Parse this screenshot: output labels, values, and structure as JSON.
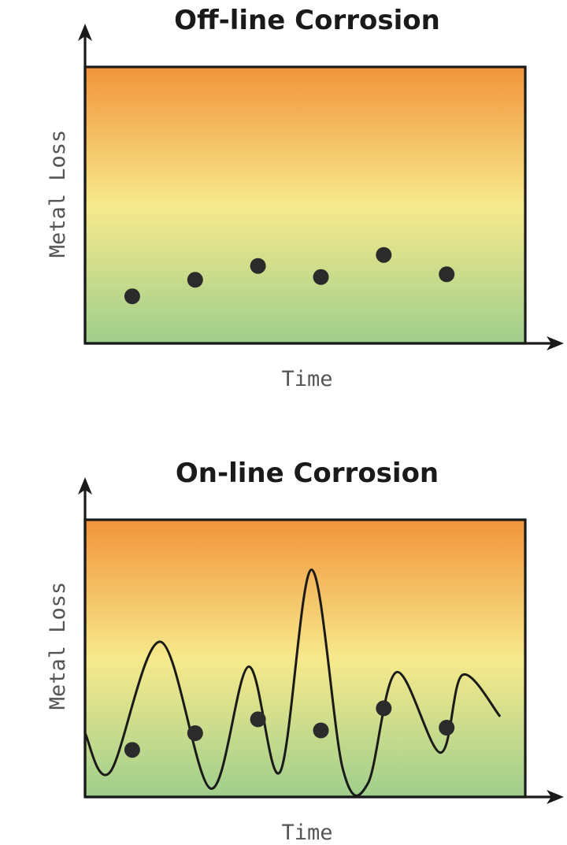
{
  "colors": {
    "gradient_top": "#f2943a",
    "gradient_mid": "#f7e98c",
    "gradient_bottom": "#9fcf8c",
    "ink": "#1a1a1a",
    "dot": "#2b2b2b"
  },
  "chart_data": [
    {
      "type": "scatter",
      "title": "Off-line Corrosion",
      "xlabel": "Time",
      "ylabel": "Metal Loss",
      "xlim": [
        0,
        7
      ],
      "ylim": [
        0,
        10
      ],
      "grid": false,
      "points": [
        {
          "x": 0.75,
          "y": 1.7
        },
        {
          "x": 1.75,
          "y": 2.3
        },
        {
          "x": 2.75,
          "y": 2.8
        },
        {
          "x": 3.75,
          "y": 2.4
        },
        {
          "x": 4.75,
          "y": 3.2
        },
        {
          "x": 5.75,
          "y": 2.5
        }
      ]
    },
    {
      "type": "line",
      "title": "On-line Corrosion",
      "xlabel": "Time",
      "ylabel": "Metal Loss",
      "xlim": [
        0,
        7
      ],
      "ylim": [
        0,
        10
      ],
      "grid": false,
      "curve": [
        {
          "x": 0.0,
          "y": 2.3
        },
        {
          "x": 0.4,
          "y": 0.9
        },
        {
          "x": 1.2,
          "y": 5.6
        },
        {
          "x": 2.0,
          "y": 0.3
        },
        {
          "x": 2.6,
          "y": 4.7
        },
        {
          "x": 3.1,
          "y": 0.9
        },
        {
          "x": 3.6,
          "y": 8.2
        },
        {
          "x": 4.1,
          "y": 1.0
        },
        {
          "x": 4.5,
          "y": 0.5
        },
        {
          "x": 4.95,
          "y": 4.5
        },
        {
          "x": 5.65,
          "y": 1.6
        },
        {
          "x": 6.0,
          "y": 4.4
        },
        {
          "x": 6.6,
          "y": 2.9
        }
      ],
      "points": [
        {
          "x": 0.75,
          "y": 1.7
        },
        {
          "x": 1.75,
          "y": 2.3
        },
        {
          "x": 2.75,
          "y": 2.8
        },
        {
          "x": 3.75,
          "y": 2.4
        },
        {
          "x": 4.75,
          "y": 3.2
        },
        {
          "x": 5.75,
          "y": 2.5
        }
      ]
    }
  ]
}
